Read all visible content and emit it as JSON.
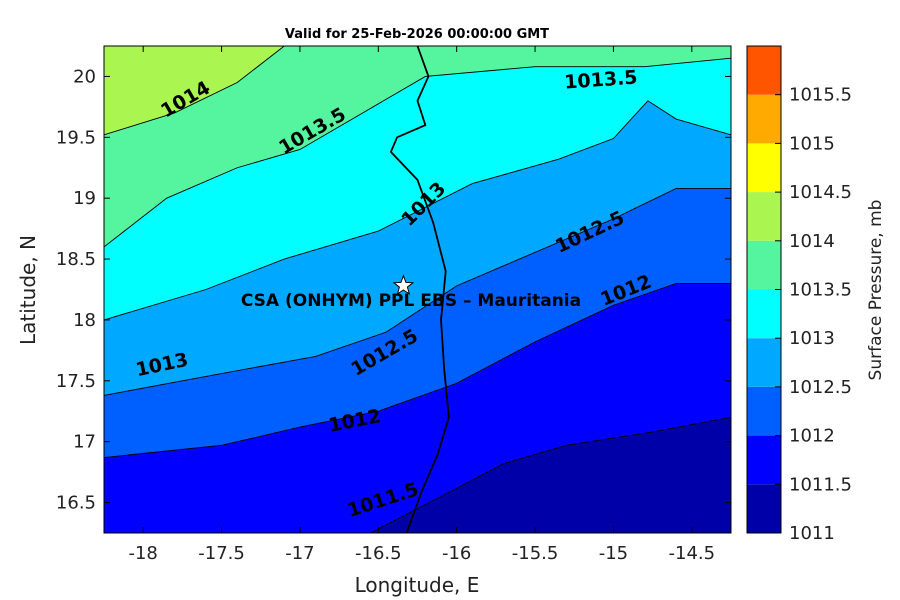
{
  "chart_data": {
    "type": "contour",
    "title": "Valid for 25-Feb-2026 00:00:00 GMT",
    "xlabel": "Longitude, E",
    "ylabel": "Latitude, N",
    "xlim": [
      -18.25,
      -14.25
    ],
    "ylim": [
      16.25,
      20.25
    ],
    "xticks": [
      -18,
      -17.5,
      -17,
      -16.5,
      -16,
      -15.5,
      -15,
      -14.5
    ],
    "yticks": [
      16.5,
      17,
      17.5,
      18,
      18.5,
      19,
      19.5,
      20
    ],
    "xtick_labels": [
      "-18",
      "-17.5",
      "-17",
      "-16.5",
      "-16",
      "-15.5",
      "-15",
      "-14.5"
    ],
    "ytick_labels": [
      "16.5",
      "17",
      "17.5",
      "18",
      "18.5",
      "19",
      "19.5",
      "20"
    ],
    "grid": false,
    "colorbar": {
      "label": "Surface Pressure, mb",
      "levels": [
        1011,
        1011.5,
        1012,
        1012.5,
        1013,
        1013.5,
        1014,
        1014.5,
        1015,
        1015.5
      ],
      "tick_labels": [
        "1011",
        "1011.5",
        "1012",
        "1012.5",
        "1013",
        "1013.5",
        "1014",
        "1014.5",
        "1015",
        "1015.5"
      ],
      "colors": [
        "#0000A8",
        "#0000FF",
        "#0060FF",
        "#00A8FF",
        "#00FFFF",
        "#55F5A0",
        "#AAF550",
        "#FFFF00",
        "#FFAA00",
        "#FF5500"
      ]
    },
    "contours": [
      {
        "level": "1011.5",
        "label_positions": [
          [
            -16.47,
            16.52
          ]
        ],
        "line": [
          [
            -16.55,
            16.25
          ],
          [
            -16.1,
            16.55
          ],
          [
            -15.7,
            16.82
          ],
          [
            -15.3,
            16.97
          ],
          [
            -14.75,
            17.08
          ],
          [
            -14.25,
            17.2
          ]
        ]
      },
      {
        "level": "1012",
        "label_positions": [
          [
            -16.65,
            17.17
          ],
          [
            -14.92,
            18.24
          ]
        ],
        "line": [
          [
            -18.25,
            16.87
          ],
          [
            -17.5,
            16.97
          ],
          [
            -17.0,
            17.12
          ],
          [
            -16.5,
            17.25
          ],
          [
            -16.0,
            17.48
          ],
          [
            -15.5,
            17.82
          ],
          [
            -15.0,
            18.12
          ],
          [
            -14.6,
            18.3
          ],
          [
            -14.25,
            18.3
          ]
        ]
      },
      {
        "level": "1012.5",
        "label_positions": [
          [
            -16.46,
            17.73
          ],
          [
            -15.15,
            18.72
          ]
        ],
        "line": [
          [
            -18.25,
            17.38
          ],
          [
            -17.5,
            17.56
          ],
          [
            -16.9,
            17.7
          ],
          [
            -16.45,
            17.9
          ],
          [
            -16.0,
            18.28
          ],
          [
            -15.6,
            18.5
          ],
          [
            -15.0,
            18.83
          ],
          [
            -14.6,
            19.08
          ],
          [
            -14.25,
            19.08
          ]
        ]
      },
      {
        "level": "1013",
        "label_positions": [
          [
            -17.88,
            17.63
          ],
          [
            -16.21,
            18.95
          ]
        ],
        "line": [
          [
            -18.25,
            18.0
          ],
          [
            -17.6,
            18.25
          ],
          [
            -17.1,
            18.5
          ],
          [
            -16.5,
            18.73
          ],
          [
            -15.9,
            19.12
          ],
          [
            -15.35,
            19.32
          ],
          [
            -15.0,
            19.49
          ],
          [
            -14.78,
            19.8
          ],
          [
            -14.6,
            19.65
          ],
          [
            -14.25,
            19.52
          ]
        ]
      },
      {
        "level": "1013.5",
        "label_positions": [
          [
            -16.92,
            19.55
          ],
          [
            -15.08,
            19.97
          ]
        ],
        "line": [
          [
            -18.25,
            18.6
          ],
          [
            -17.85,
            19.0
          ],
          [
            -17.4,
            19.25
          ],
          [
            -17.0,
            19.4
          ],
          [
            -16.6,
            19.7
          ],
          [
            -16.2,
            20.0
          ],
          [
            -15.5,
            20.08
          ],
          [
            -14.8,
            20.08
          ],
          [
            -14.25,
            20.15
          ]
        ]
      },
      {
        "level": "1014",
        "label_positions": [
          [
            -17.73,
            19.81
          ]
        ],
        "line": [
          [
            -18.25,
            19.52
          ],
          [
            -17.8,
            19.7
          ],
          [
            -17.4,
            19.95
          ],
          [
            -17.1,
            20.25
          ]
        ]
      }
    ],
    "station": {
      "name": "CSA (ONHYM) PPL EBS  – Mauritania",
      "lon": -16.34,
      "lat": 18.28
    },
    "coastline": [
      [
        -16.32,
        16.25
      ],
      [
        -16.22,
        16.6
      ],
      [
        -16.12,
        16.9
      ],
      [
        -16.05,
        17.2
      ],
      [
        -16.08,
        17.6
      ],
      [
        -16.1,
        18.0
      ],
      [
        -16.07,
        18.4
      ],
      [
        -16.15,
        18.8
      ],
      [
        -16.25,
        19.15
      ],
      [
        -16.42,
        19.38
      ],
      [
        -16.38,
        19.5
      ],
      [
        -16.2,
        19.6
      ],
      [
        -16.25,
        19.8
      ],
      [
        -16.18,
        20.0
      ],
      [
        -16.25,
        20.25
      ]
    ]
  }
}
